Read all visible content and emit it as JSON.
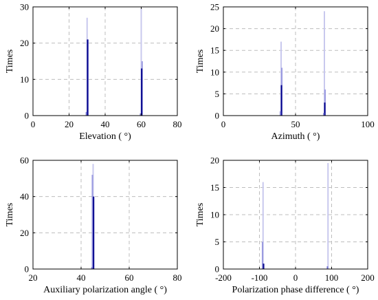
{
  "chart_data": [
    {
      "type": "bar",
      "xlabel": "Elevation ( °)",
      "ylabel": "Times",
      "xlim": [
        0,
        80
      ],
      "ylim": [
        0,
        30
      ],
      "xticks": [
        0,
        20,
        40,
        60,
        80
      ],
      "yticks": [
        0,
        10,
        20,
        30
      ],
      "series": [
        {
          "x": [
            30,
            60
          ],
          "values": [
            27,
            29.5
          ],
          "color": "#c8c8ee"
        },
        {
          "x": [
            30.5,
            60.5
          ],
          "values": [
            21,
            15
          ],
          "color": "#9a9ae0"
        },
        {
          "x": [
            30.25,
            60.25
          ],
          "values": [
            21,
            13
          ],
          "color": "#00008b"
        },
        {
          "x": [
            29.6,
            59.6
          ],
          "values": [
            1,
            0.6
          ],
          "color": "#7070d0"
        }
      ]
    },
    {
      "type": "bar",
      "xlabel": "Azimuth ( °)",
      "ylabel": "Times",
      "xlim": [
        0,
        100
      ],
      "ylim": [
        0,
        25
      ],
      "xticks": [
        0,
        50,
        100
      ],
      "yticks": [
        0,
        5,
        10,
        15,
        20,
        25
      ],
      "series": [
        {
          "x": [
            40,
            70
          ],
          "values": [
            17,
            24
          ],
          "color": "#c8c8ee"
        },
        {
          "x": [
            40.5,
            70.5
          ],
          "values": [
            11,
            6
          ],
          "color": "#9a9ae0"
        },
        {
          "x": [
            40.25,
            70.25
          ],
          "values": [
            7,
            3
          ],
          "color": "#00008b"
        },
        {
          "x": [
            39.6,
            69.6
          ],
          "values": [
            1,
            0.6
          ],
          "color": "#7070d0"
        }
      ]
    },
    {
      "type": "bar",
      "xlabel": "Auxiliary polarization angle ( °)",
      "ylabel": "Times",
      "xlim": [
        20,
        80
      ],
      "ylim": [
        0,
        60
      ],
      "xticks": [
        20,
        40,
        60,
        80
      ],
      "yticks": [
        0,
        20,
        40,
        60
      ],
      "series": [
        {
          "x": [
            45
          ],
          "values": [
            58
          ],
          "color": "#c8c8ee"
        },
        {
          "x": [
            44.7
          ],
          "values": [
            52
          ],
          "color": "#9a9ae0"
        },
        {
          "x": [
            45.2
          ],
          "values": [
            40
          ],
          "color": "#00008b"
        },
        {
          "x": [
            44.5
          ],
          "values": [
            1
          ],
          "color": "#7070d0"
        }
      ]
    },
    {
      "type": "bar",
      "xlabel": "Polarization phase difference ( °)",
      "ylabel": "Times",
      "xlim": [
        -200,
        200
      ],
      "ylim": [
        0,
        20
      ],
      "xticks": [
        -200,
        -100,
        0,
        100,
        200
      ],
      "yticks": [
        0,
        5,
        10,
        15,
        20
      ],
      "series": [
        {
          "x": [
            -90,
            90
          ],
          "values": [
            16,
            19.5
          ],
          "color": "#c8c8ee"
        },
        {
          "x": [
            -91.5
          ],
          "values": [
            5
          ],
          "color": "#9a9ae0"
        },
        {
          "x": [
            -88.5
          ],
          "values": [
            1
          ],
          "color": "#00008b"
        },
        {
          "x": [
            88.5
          ],
          "values": [
            0.5
          ],
          "color": "#7070d0"
        }
      ]
    }
  ]
}
